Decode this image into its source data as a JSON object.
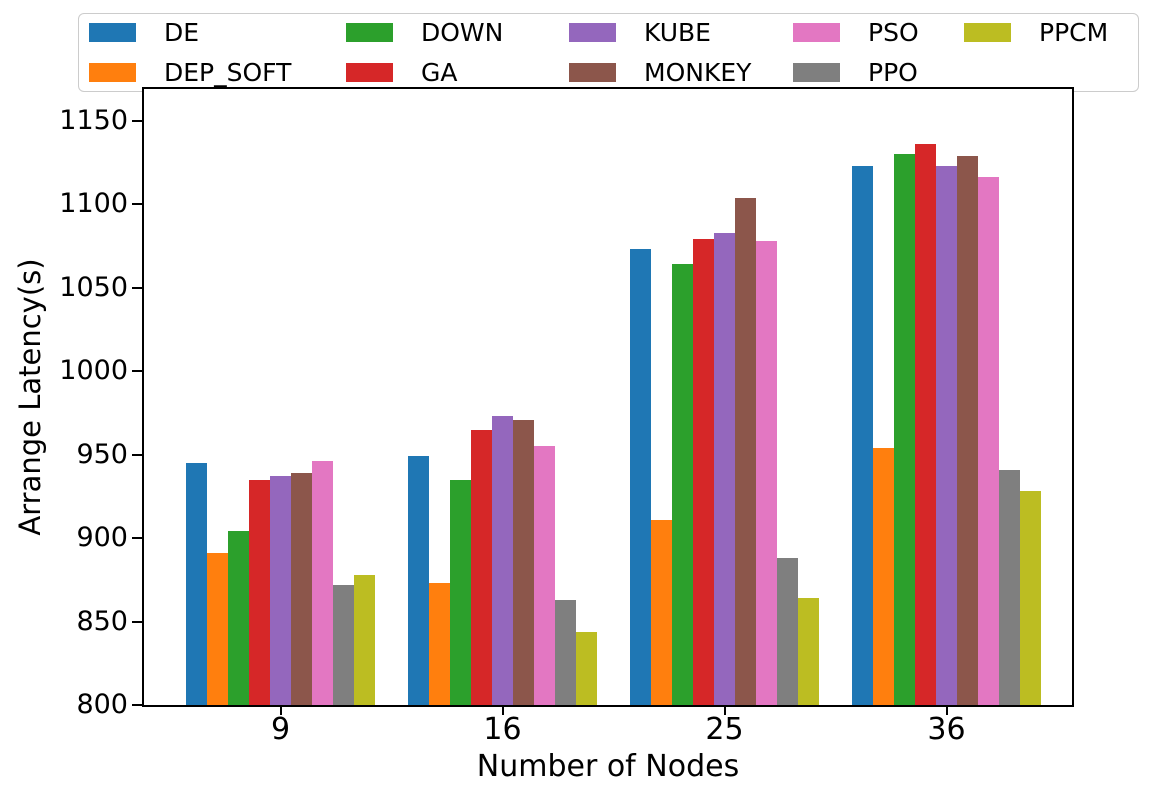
{
  "chart_data": {
    "type": "bar",
    "title": "",
    "xlabel": "Number of Nodes",
    "ylabel": "Arrange Latency(s)",
    "categories": [
      "9",
      "16",
      "25",
      "36"
    ],
    "series": [
      {
        "name": "DE",
        "color": "#1f77b4",
        "values": [
          945,
          949,
          1073,
          1123
        ]
      },
      {
        "name": "DEP_SOFT",
        "color": "#ff7f0e",
        "values": [
          891,
          873,
          911,
          954
        ]
      },
      {
        "name": "DOWN",
        "color": "#2ca02c",
        "values": [
          904,
          935,
          1064,
          1130
        ]
      },
      {
        "name": "GA",
        "color": "#d62728",
        "values": [
          935,
          965,
          1079,
          1136
        ]
      },
      {
        "name": "KUBE",
        "color": "#9467bd",
        "values": [
          937,
          973,
          1083,
          1123
        ]
      },
      {
        "name": "MONKEY",
        "color": "#8c564b",
        "values": [
          939,
          971,
          1104,
          1129
        ]
      },
      {
        "name": "PSO",
        "color": "#e377c2",
        "values": [
          946,
          955,
          1078,
          1116
        ]
      },
      {
        "name": "PPO",
        "color": "#7f7f7f",
        "values": [
          872,
          863,
          888,
          941
        ]
      },
      {
        "name": "PPCM",
        "color": "#bcbd22",
        "values": [
          878,
          844,
          864,
          928
        ]
      }
    ],
    "ylim": [
      800,
      1169
    ],
    "yticks": [
      800,
      850,
      900,
      950,
      1000,
      1050,
      1100,
      1150
    ],
    "grid": false,
    "legend_position": "top",
    "legend_ncol": 5
  },
  "colors": {
    "axis": "#000000",
    "legend_border": "#cccccc",
    "background": "#ffffff"
  }
}
